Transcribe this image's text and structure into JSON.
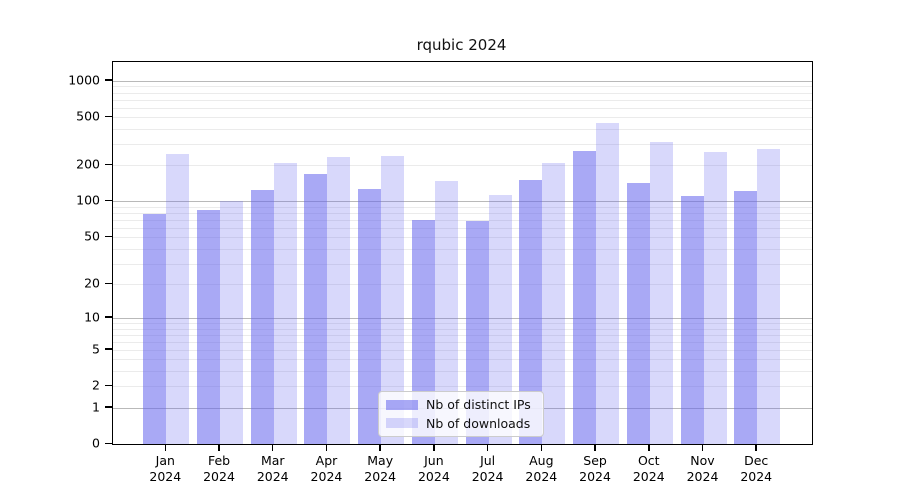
{
  "title": "rqubic 2024",
  "legend": {
    "items": [
      {
        "label": "Nb of distinct IPs"
      },
      {
        "label": "Nb of downloads"
      }
    ]
  },
  "colors": {
    "distinct_ips_bar": "rgba(101,101,238,0.56)",
    "downloads_bar": "rgba(101,101,238,0.25)",
    "major_gridline": "#b9b9b9",
    "minor_gridline": "#ebebeb"
  },
  "chart_data": {
    "type": "bar",
    "title": "rqubic 2024",
    "categories": [
      "Jan 2024",
      "Feb 2024",
      "Mar 2024",
      "Apr 2024",
      "May 2024",
      "Jun 2024",
      "Jul 2024",
      "Aug 2024",
      "Sep 2024",
      "Oct 2024",
      "Nov 2024",
      "Dec 2024"
    ],
    "series": [
      {
        "name": "Nb of distinct IPs",
        "color": "rgba(101,101,238,0.56)",
        "values": [
          78,
          85,
          124,
          168,
          126,
          70,
          69,
          152,
          263,
          142,
          112,
          123
        ]
      },
      {
        "name": "Nb of downloads",
        "color": "rgba(101,101,238,0.25)",
        "values": [
          250,
          100,
          208,
          236,
          240,
          149,
          114,
          210,
          453,
          315,
          258,
          274
        ]
      }
    ],
    "xlabel": "",
    "ylabel": "",
    "y_scale": "log1p",
    "y_ticks": [
      0,
      1,
      2,
      5,
      10,
      20,
      50,
      100,
      200,
      500,
      1000
    ],
    "ylim": [
      0,
      1400
    ],
    "grid": "horizontal major+minor log decades",
    "legend_position": "lower center"
  }
}
